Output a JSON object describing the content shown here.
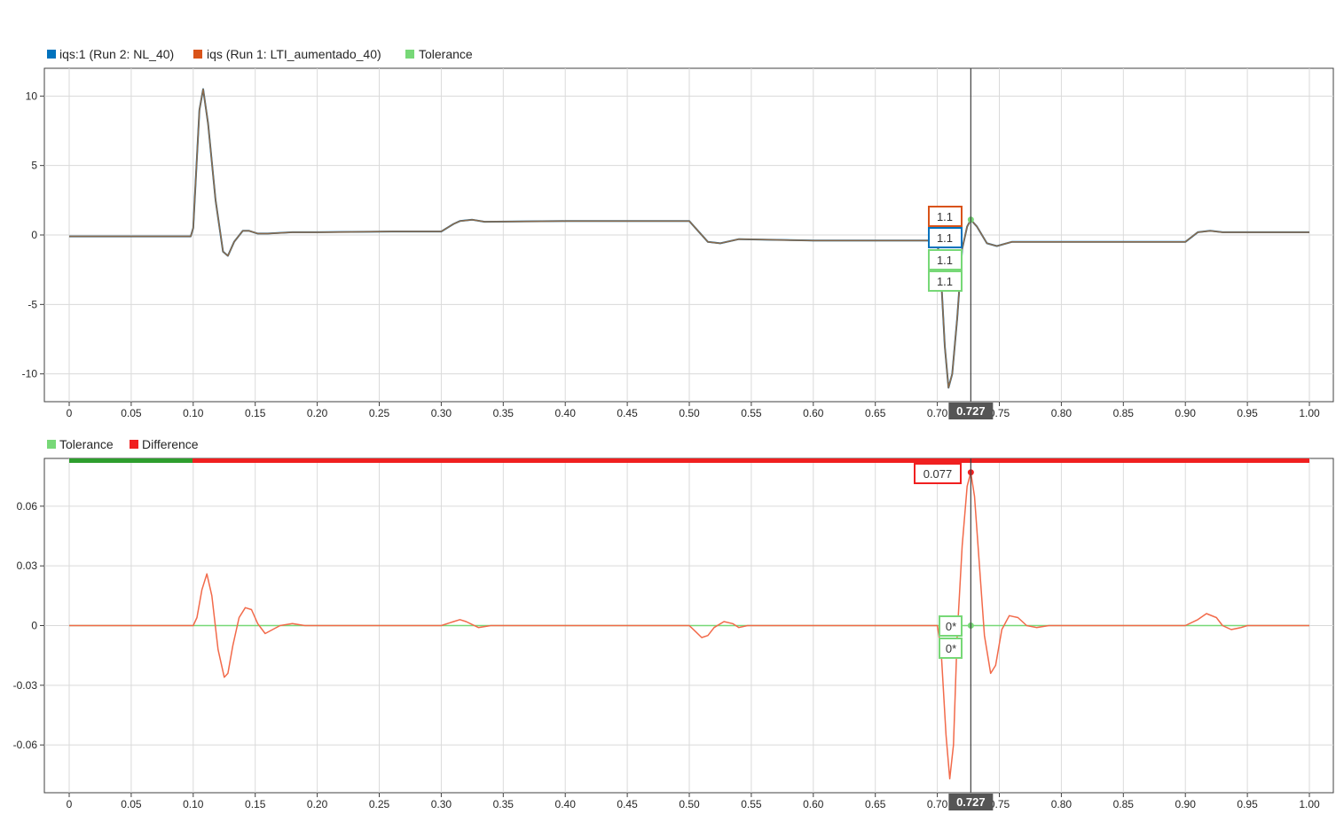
{
  "colors": {
    "run2": "#0072BD",
    "run1": "#D95319",
    "overlap": "#8C6A4A",
    "tolerance": "#77D877",
    "tolerance_bar": "#2E9E2E",
    "difference": "#F02020",
    "difference_line": "#F26A4A",
    "grid": "#DADADA",
    "axis": "#404040",
    "cursor_box": "#555555"
  },
  "cursor": {
    "value": 0.727,
    "label": "0.727"
  },
  "chart_data": [
    {
      "type": "line",
      "title": "",
      "xlabel": "",
      "ylabel": "",
      "xlim": [
        -0.01,
        1.01
      ],
      "ylim": [
        -12,
        12
      ],
      "grid": true,
      "legend_position": "top-left",
      "x_ticks": [
        "0",
        "0.05",
        "0.10",
        "0.15",
        "0.20",
        "0.25",
        "0.30",
        "0.35",
        "0.40",
        "0.45",
        "0.50",
        "0.55",
        "0.60",
        "0.65",
        "0.70",
        "0.75",
        "0.80",
        "0.85",
        "0.90",
        "0.95",
        "1.00"
      ],
      "y_ticks": [
        "10",
        "5",
        "0",
        "-5",
        "-10"
      ],
      "legend": [
        {
          "name": "iqs:1 (Run 2: NL_40)",
          "color": "#0072BD"
        },
        {
          "name": "iqs (Run 1: LTI_aumentado_40)",
          "color": "#D95319"
        },
        {
          "name": "Tolerance",
          "color": "#77D877"
        }
      ],
      "series": [
        {
          "name": "iqs:1 (Run 2: NL_40)",
          "x": [
            0,
            0.098,
            0.1,
            0.105,
            0.108,
            0.112,
            0.118,
            0.124,
            0.128,
            0.133,
            0.14,
            0.145,
            0.152,
            0.16,
            0.18,
            0.2,
            0.26,
            0.3,
            0.31,
            0.315,
            0.325,
            0.335,
            0.4,
            0.5,
            0.505,
            0.515,
            0.525,
            0.54,
            0.6,
            0.7,
            0.703,
            0.706,
            0.709,
            0.712,
            0.716,
            0.72,
            0.724,
            0.727,
            0.732,
            0.74,
            0.748,
            0.76,
            0.77,
            0.9,
            0.91,
            0.92,
            0.93,
            0.95,
            1.0
          ],
          "values": [
            -0.1,
            -0.1,
            0.5,
            9,
            10.5,
            8,
            2.5,
            -1.2,
            -1.5,
            -0.5,
            0.3,
            0.3,
            0.1,
            0.1,
            0.2,
            0.2,
            0.25,
            0.25,
            0.8,
            1.0,
            1.1,
            0.95,
            1.0,
            1.0,
            0.5,
            -0.5,
            -0.6,
            -0.3,
            -0.4,
            -0.4,
            -3,
            -8,
            -11,
            -10,
            -6,
            -1,
            0.6,
            1.1,
            0.6,
            -0.6,
            -0.8,
            -0.5,
            -0.5,
            -0.5,
            0.2,
            0.3,
            0.2,
            0.2,
            0.2
          ]
        },
        {
          "name": "iqs (Run 1: LTI_aumentado_40)",
          "x": [
            0,
            0.098,
            0.1,
            0.105,
            0.108,
            0.112,
            0.118,
            0.124,
            0.128,
            0.133,
            0.14,
            0.145,
            0.152,
            0.16,
            0.18,
            0.2,
            0.26,
            0.3,
            0.31,
            0.315,
            0.325,
            0.335,
            0.4,
            0.5,
            0.505,
            0.515,
            0.525,
            0.54,
            0.6,
            0.7,
            0.703,
            0.706,
            0.709,
            0.712,
            0.716,
            0.72,
            0.724,
            0.727,
            0.732,
            0.74,
            0.748,
            0.76,
            0.77,
            0.9,
            0.91,
            0.92,
            0.93,
            0.95,
            1.0
          ],
          "values": [
            -0.1,
            -0.1,
            0.5,
            9,
            10.5,
            8,
            2.5,
            -1.2,
            -1.5,
            -0.5,
            0.3,
            0.3,
            0.1,
            0.1,
            0.2,
            0.2,
            0.25,
            0.25,
            0.8,
            1.0,
            1.1,
            0.95,
            1.0,
            1.0,
            0.5,
            -0.5,
            -0.6,
            -0.3,
            -0.4,
            -0.4,
            -3,
            -8,
            -11,
            -10,
            -6,
            -1,
            0.6,
            1.1,
            0.6,
            -0.6,
            -0.8,
            -0.5,
            -0.5,
            -0.5,
            0.2,
            0.3,
            0.2,
            0.2,
            0.2
          ]
        }
      ],
      "callouts": [
        "1.1",
        "1.1",
        "1.1",
        "1.1"
      ]
    },
    {
      "type": "line",
      "title": "",
      "xlabel": "",
      "ylabel": "",
      "xlim": [
        -0.01,
        1.01
      ],
      "ylim": [
        -0.084,
        0.084
      ],
      "grid": true,
      "legend_position": "top-left",
      "x_ticks": [
        "0",
        "0.05",
        "0.10",
        "0.15",
        "0.20",
        "0.25",
        "0.30",
        "0.35",
        "0.40",
        "0.45",
        "0.50",
        "0.55",
        "0.60",
        "0.65",
        "0.70",
        "0.75",
        "0.80",
        "0.85",
        "0.90",
        "0.95",
        "1.00"
      ],
      "y_ticks": [
        "0.06",
        "0.03",
        "0",
        "-0.03",
        "-0.06"
      ],
      "legend": [
        {
          "name": "Tolerance",
          "color": "#77D877"
        },
        {
          "name": "Difference",
          "color": "#F02020"
        }
      ],
      "series": [
        {
          "name": "Tolerance",
          "x": [
            0,
            1.0
          ],
          "values": [
            0,
            0
          ]
        },
        {
          "name": "Difference",
          "x": [
            0,
            0.1,
            0.103,
            0.107,
            0.111,
            0.115,
            0.12,
            0.125,
            0.128,
            0.132,
            0.137,
            0.142,
            0.147,
            0.152,
            0.158,
            0.164,
            0.17,
            0.18,
            0.19,
            0.2,
            0.3,
            0.31,
            0.315,
            0.32,
            0.33,
            0.34,
            0.5,
            0.505,
            0.51,
            0.515,
            0.52,
            0.528,
            0.535,
            0.54,
            0.547,
            0.555,
            0.7,
            0.703,
            0.707,
            0.71,
            0.713,
            0.716,
            0.72,
            0.724,
            0.727,
            0.73,
            0.734,
            0.738,
            0.743,
            0.747,
            0.752,
            0.758,
            0.765,
            0.772,
            0.78,
            0.79,
            0.8,
            0.9,
            0.91,
            0.917,
            0.925,
            0.93,
            0.937,
            0.945,
            0.95,
            0.958,
            0.965,
            1.0
          ],
          "values": [
            0,
            0,
            0.004,
            0.018,
            0.026,
            0.015,
            -0.012,
            -0.026,
            -0.024,
            -0.01,
            0.004,
            0.009,
            0.008,
            0.001,
            -0.004,
            -0.002,
            0.0,
            0.001,
            0.0,
            0,
            0,
            0.002,
            0.003,
            0.002,
            -0.001,
            0,
            0,
            -0.003,
            -0.006,
            -0.005,
            -0.001,
            0.002,
            0.001,
            -0.001,
            0,
            0,
            0,
            -0.012,
            -0.055,
            -0.077,
            -0.06,
            -0.005,
            0.04,
            0.07,
            0.077,
            0.065,
            0.03,
            -0.005,
            -0.024,
            -0.02,
            -0.002,
            0.005,
            0.004,
            0.0,
            -0.001,
            0.0,
            0,
            0,
            0.003,
            0.006,
            0.004,
            0.0,
            -0.002,
            -0.001,
            0.0,
            0.0,
            0.0,
            0
          ]
        }
      ],
      "callouts": [
        "0.077",
        "0*",
        "0*"
      ]
    }
  ]
}
